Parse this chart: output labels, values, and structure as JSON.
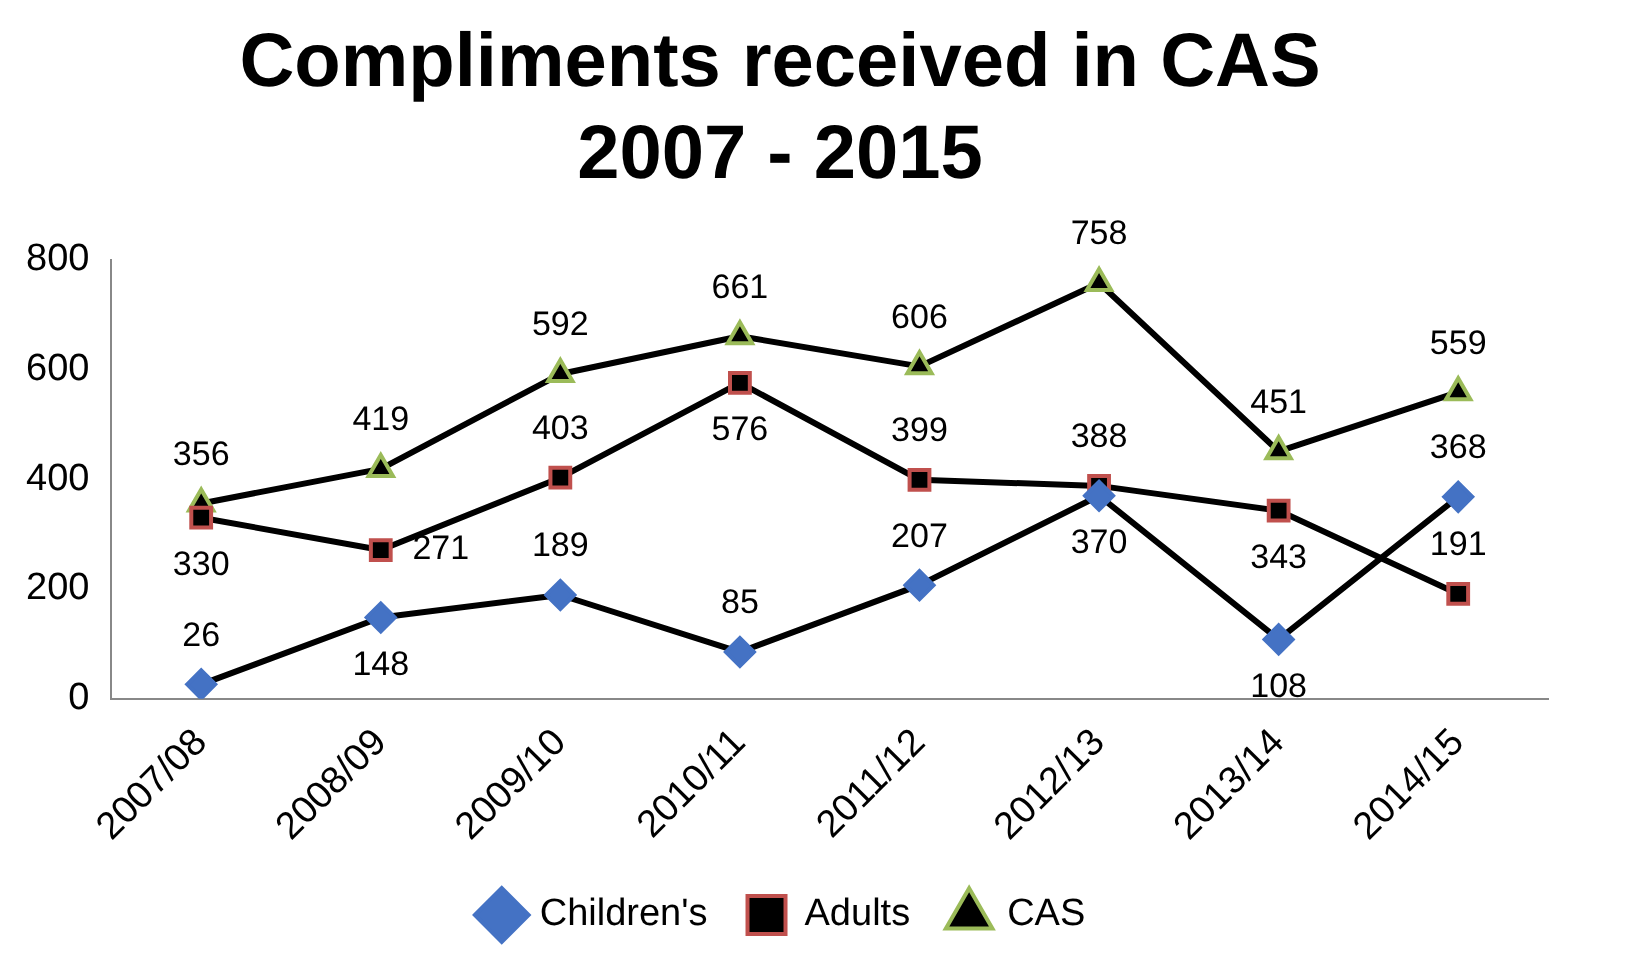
{
  "chart_data": {
    "type": "line",
    "title": "Compliments received in CAS 2007 - 2015",
    "categories": [
      "2007/08",
      "2008/09",
      "2009/10",
      "2010/11",
      "2011/12",
      "2012/13",
      "2013/14",
      "2014/15"
    ],
    "series": [
      {
        "name": "Children's",
        "color": "#4472c4",
        "marker": "diamond",
        "values": [
          26,
          148,
          189,
          85,
          207,
          370,
          108,
          368
        ]
      },
      {
        "name": "Adults",
        "color": "#c0504d",
        "marker": "square",
        "values": [
          330,
          271,
          403,
          576,
          399,
          388,
          343,
          191
        ]
      },
      {
        "name": "CAS",
        "color": "#9bbb59",
        "marker": "triangle",
        "values": [
          356,
          419,
          592,
          661,
          606,
          758,
          451,
          559
        ]
      }
    ],
    "ylim": [
      0,
      800
    ],
    "yticks": [
      0,
      200,
      400,
      600,
      800
    ],
    "grid": false,
    "legend": "bottom",
    "data_labels": true,
    "line_style": "solid"
  }
}
